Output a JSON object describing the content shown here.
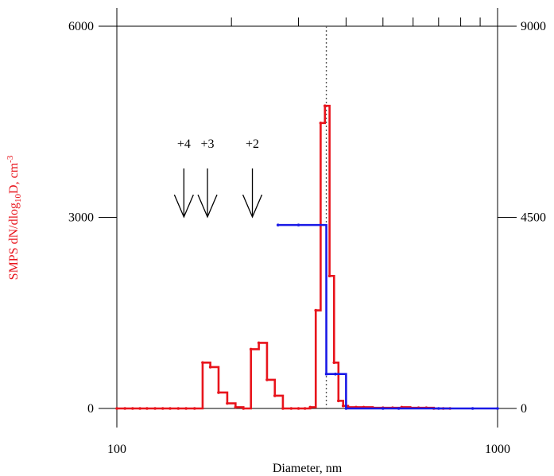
{
  "chart_data": {
    "type": "line",
    "xlabel": "Diameter, nm",
    "ylabel_left": {
      "main": "SMPS dN/dlog",
      "sub": "10",
      "tail": "D, cm",
      "sup": "-3"
    },
    "x_scale": "log",
    "xlim": [
      100,
      1000
    ],
    "ylim_left": [
      0,
      6000
    ],
    "ylim_right": [
      0,
      9000
    ],
    "x_ticks": [
      {
        "value": 100,
        "label": "100"
      },
      {
        "value": 1000,
        "label": "1000"
      }
    ],
    "y_ticks_left": [
      {
        "value": 0,
        "label": "0"
      },
      {
        "value": 3000,
        "label": "3000"
      },
      {
        "value": 6000,
        "label": "6000"
      }
    ],
    "y_ticks_right": [
      {
        "value": 0,
        "label": "0"
      },
      {
        "value": 4500,
        "label": "4500"
      },
      {
        "value": 9000,
        "label": "9000"
      }
    ],
    "vline_x": 355,
    "colors": {
      "smps": "#e8141c",
      "second": "#1a1ae6",
      "axis": "#000000"
    },
    "series": [
      {
        "axis": "left",
        "color": "#e8141c",
        "x": [
          100,
          105,
          110,
          115,
          120,
          126,
          132,
          138,
          145,
          152,
          160,
          168,
          176,
          185,
          195,
          205,
          215,
          225,
          236,
          248,
          260,
          273,
          287,
          300,
          312,
          322,
          333,
          343,
          352,
          362,
          372,
          382,
          393,
          405,
          425,
          445,
          470,
          500,
          530,
          560,
          590,
          620,
          650,
          680,
          720,
          750
        ],
        "y": [
          0,
          0,
          0,
          0,
          0,
          0,
          0,
          0,
          0,
          0,
          0,
          720,
          650,
          250,
          80,
          20,
          0,
          930,
          1030,
          450,
          200,
          0,
          0,
          0,
          0,
          20,
          1540,
          4480,
          4750,
          2080,
          720,
          120,
          40,
          20,
          20,
          20,
          10,
          10,
          10,
          20,
          10,
          10,
          10,
          0,
          0,
          0
        ]
      },
      {
        "axis": "right",
        "color": "#1a1ae6",
        "x": [
          265,
          300,
          355,
          375,
          400,
          500,
          550,
          700,
          860,
          1000
        ],
        "y": [
          4320,
          4320,
          810,
          810,
          0,
          0,
          0,
          0,
          0,
          0
        ]
      }
    ],
    "annotations": [
      {
        "label": "+4",
        "x": 150
      },
      {
        "label": "+3",
        "x": 173
      },
      {
        "label": "+2",
        "x": 227
      }
    ]
  }
}
